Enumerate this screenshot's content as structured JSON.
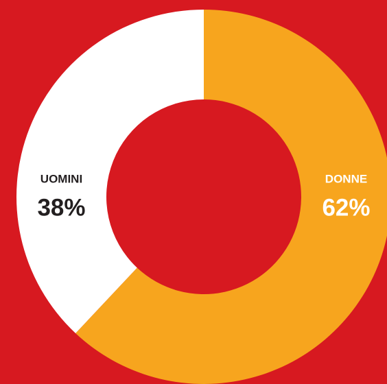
{
  "chart_data": {
    "type": "donut",
    "categories": [
      "DONNE",
      "UOMINI"
    ],
    "values": [
      62,
      38
    ],
    "value_labels": [
      "62%",
      "38%"
    ],
    "colors": [
      "#f7a51e",
      "#ffffff"
    ],
    "label_colors": [
      "#ffffff",
      "#231f20"
    ],
    "background": "#d71920"
  }
}
